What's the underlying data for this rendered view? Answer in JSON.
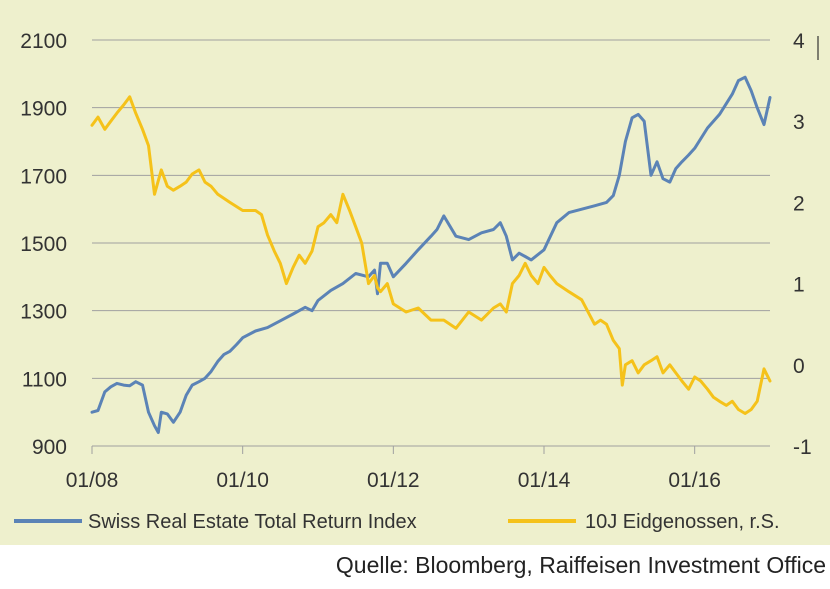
{
  "colors": {
    "background": "#eef0cd",
    "blue_series": "#5b83b6",
    "yellow_series": "#f5c21a",
    "grid": "#a0a0a0",
    "text": "#333333"
  },
  "source": "Quelle: Bloomberg, Raiffeisen Investment Office",
  "chart_data": {
    "type": "line",
    "title": "",
    "xlabel": "",
    "ylabel": "",
    "grid": true,
    "legend_position": "bottom",
    "x_ticks": [
      "01/08",
      "01/10",
      "01/12",
      "01/14",
      "01/16"
    ],
    "x_tick_values": [
      2008.0,
      2010.0,
      2012.0,
      2014.0,
      2016.0
    ],
    "xlim": [
      2008.0,
      2017.0
    ],
    "y_left": {
      "ticks": [
        "2100",
        "1900",
        "1700",
        "1500",
        "1300",
        "1100",
        "900"
      ],
      "lim": [
        900,
        2100
      ]
    },
    "y_right": {
      "ticks": [
        "4",
        "3",
        "2",
        "1",
        "0",
        "-1"
      ],
      "lim": [
        -1,
        4
      ]
    },
    "series": [
      {
        "name": "Swiss Real Estate Total Return Index",
        "axis": "left",
        "color": "#5b83b6",
        "x": [
          2008.0,
          2008.08,
          2008.17,
          2008.25,
          2008.33,
          2008.42,
          2008.5,
          2008.58,
          2008.67,
          2008.75,
          2008.83,
          2008.88,
          2008.92,
          2009.0,
          2009.08,
          2009.17,
          2009.25,
          2009.33,
          2009.42,
          2009.5,
          2009.58,
          2009.67,
          2009.75,
          2009.83,
          2009.92,
          2010.0,
          2010.17,
          2010.33,
          2010.5,
          2010.67,
          2010.83,
          2010.92,
          2011.0,
          2011.17,
          2011.33,
          2011.5,
          2011.67,
          2011.75,
          2011.79,
          2011.83,
          2011.92,
          2012.0,
          2012.17,
          2012.33,
          2012.5,
          2012.58,
          2012.67,
          2012.83,
          2013.0,
          2013.17,
          2013.33,
          2013.42,
          2013.5,
          2013.58,
          2013.67,
          2013.75,
          2013.83,
          2014.0,
          2014.17,
          2014.33,
          2014.5,
          2014.67,
          2014.83,
          2014.92,
          2015.0,
          2015.08,
          2015.17,
          2015.25,
          2015.33,
          2015.42,
          2015.5,
          2015.58,
          2015.67,
          2015.75,
          2015.83,
          2015.92,
          2016.0,
          2016.17,
          2016.33,
          2016.5,
          2016.58,
          2016.67,
          2016.75,
          2016.83,
          2016.92,
          2017.0
        ],
        "values": [
          1000,
          1005,
          1060,
          1075,
          1085,
          1080,
          1078,
          1090,
          1080,
          1000,
          960,
          940,
          1000,
          995,
          970,
          1000,
          1050,
          1080,
          1090,
          1100,
          1120,
          1150,
          1170,
          1180,
          1200,
          1220,
          1240,
          1250,
          1270,
          1290,
          1310,
          1300,
          1330,
          1360,
          1380,
          1410,
          1400,
          1420,
          1350,
          1440,
          1440,
          1400,
          1440,
          1480,
          1520,
          1540,
          1580,
          1520,
          1510,
          1530,
          1540,
          1560,
          1520,
          1450,
          1470,
          1460,
          1450,
          1480,
          1560,
          1590,
          1600,
          1610,
          1620,
          1640,
          1700,
          1800,
          1870,
          1880,
          1860,
          1700,
          1740,
          1690,
          1680,
          1720,
          1740,
          1760,
          1780,
          1840,
          1880,
          1940,
          1980,
          1990,
          1950,
          1900,
          1850,
          1930
        ]
      },
      {
        "name": "10J Eidgenossen, r.S.",
        "axis": "right",
        "color": "#f5c21a",
        "x": [
          2008.0,
          2008.08,
          2008.17,
          2008.25,
          2008.33,
          2008.42,
          2008.5,
          2008.58,
          2008.67,
          2008.75,
          2008.83,
          2008.92,
          2009.0,
          2009.08,
          2009.17,
          2009.25,
          2009.33,
          2009.42,
          2009.5,
          2009.58,
          2009.67,
          2009.83,
          2010.0,
          2010.17,
          2010.25,
          2010.33,
          2010.42,
          2010.5,
          2010.58,
          2010.67,
          2010.75,
          2010.83,
          2010.92,
          2011.0,
          2011.08,
          2011.17,
          2011.25,
          2011.33,
          2011.42,
          2011.5,
          2011.58,
          2011.67,
          2011.75,
          2011.79,
          2011.83,
          2011.92,
          2012.0,
          2012.17,
          2012.33,
          2012.5,
          2012.67,
          2012.83,
          2013.0,
          2013.17,
          2013.33,
          2013.42,
          2013.5,
          2013.58,
          2013.67,
          2013.75,
          2013.83,
          2013.92,
          2014.0,
          2014.08,
          2014.17,
          2014.33,
          2014.5,
          2014.67,
          2014.75,
          2014.83,
          2014.92,
          2015.0,
          2015.04,
          2015.08,
          2015.17,
          2015.25,
          2015.33,
          2015.42,
          2015.5,
          2015.58,
          2015.67,
          2015.75,
          2015.83,
          2015.92,
          2016.0,
          2016.08,
          2016.17,
          2016.25,
          2016.33,
          2016.42,
          2016.5,
          2016.58,
          2016.67,
          2016.75,
          2016.83,
          2016.92,
          2017.0
        ],
        "values": [
          2.95,
          3.05,
          2.9,
          3.0,
          3.1,
          3.2,
          3.3,
          3.1,
          2.9,
          2.7,
          2.1,
          2.4,
          2.2,
          2.15,
          2.2,
          2.25,
          2.35,
          2.4,
          2.25,
          2.2,
          2.1,
          2.0,
          1.9,
          1.9,
          1.85,
          1.6,
          1.4,
          1.25,
          1.0,
          1.2,
          1.35,
          1.25,
          1.4,
          1.7,
          1.75,
          1.85,
          1.75,
          2.1,
          1.9,
          1.7,
          1.5,
          1.0,
          1.1,
          0.95,
          0.9,
          1.0,
          0.75,
          0.65,
          0.7,
          0.55,
          0.55,
          0.45,
          0.65,
          0.55,
          0.7,
          0.75,
          0.65,
          1.0,
          1.1,
          1.25,
          1.1,
          1.0,
          1.2,
          1.1,
          1.0,
          0.9,
          0.8,
          0.5,
          0.55,
          0.5,
          0.3,
          0.2,
          -0.25,
          0.0,
          0.05,
          -0.1,
          0.0,
          0.05,
          0.1,
          -0.1,
          0.0,
          -0.1,
          -0.2,
          -0.3,
          -0.15,
          -0.2,
          -0.3,
          -0.4,
          -0.45,
          -0.5,
          -0.45,
          -0.55,
          -0.6,
          -0.55,
          -0.45,
          -0.05,
          -0.2
        ]
      }
    ]
  }
}
